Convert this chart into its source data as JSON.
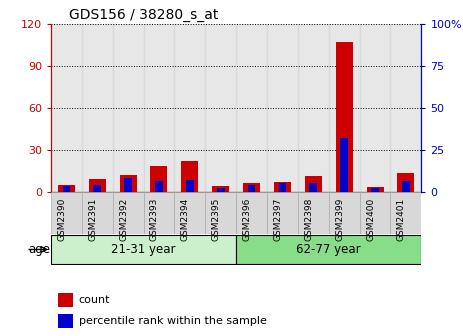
{
  "title": "GDS156 / 38280_s_at",
  "samples": [
    "GSM2390",
    "GSM2391",
    "GSM2392",
    "GSM2393",
    "GSM2394",
    "GSM2395",
    "GSM2396",
    "GSM2397",
    "GSM2398",
    "GSM2399",
    "GSM2400",
    "GSM2401"
  ],
  "count_values": [
    5,
    9,
    12,
    18,
    22,
    4,
    6,
    7,
    11,
    107,
    3,
    13
  ],
  "percentile_values": [
    3,
    4,
    8,
    6,
    7,
    2,
    4,
    5,
    5,
    32,
    2,
    6
  ],
  "groups": [
    {
      "label": "21-31 year",
      "start": 0,
      "end": 5
    },
    {
      "label": "62-77 year",
      "start": 6,
      "end": 11
    }
  ],
  "group_color_light": "#ccf0cc",
  "group_color_dark": "#88dd88",
  "red_color": "#cc0000",
  "blue_color": "#0000cc",
  "left_yticks": [
    0,
    30,
    60,
    90,
    120
  ],
  "right_yticks": [
    0,
    25,
    50,
    75,
    100
  ],
  "ylim_left": [
    0,
    120
  ],
  "ylim_right": [
    0,
    100
  ],
  "age_label": "age",
  "legend_count": "count",
  "legend_percentile": "percentile rank within the sample",
  "xticklabel_bg": "#d8d8d8",
  "col_border_color": "#aaaaaa"
}
